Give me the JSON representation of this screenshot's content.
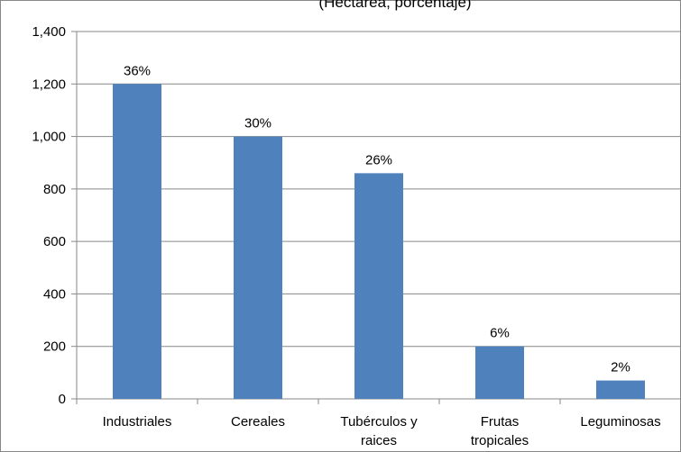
{
  "chart_data": {
    "type": "bar",
    "subtitle": "(Hectárea, porcentaje)",
    "categories": [
      [
        "Industriales"
      ],
      [
        "Cereales"
      ],
      [
        "Tubérculos y",
        "raices"
      ],
      [
        "Frutas",
        "tropicales"
      ],
      [
        "Leguminosas"
      ]
    ],
    "values": [
      1200,
      1000,
      860,
      200,
      70
    ],
    "data_labels": [
      "36%",
      "30%",
      "26%",
      "6%",
      "2%"
    ],
    "ylim": [
      0,
      1400
    ],
    "yticks": [
      "0",
      "200",
      "400",
      "600",
      "800",
      "1,000",
      "1,200",
      "1,400"
    ],
    "grid": true,
    "legend": "none",
    "bar_color": "#4F81BD",
    "grid_color": "#878787"
  }
}
